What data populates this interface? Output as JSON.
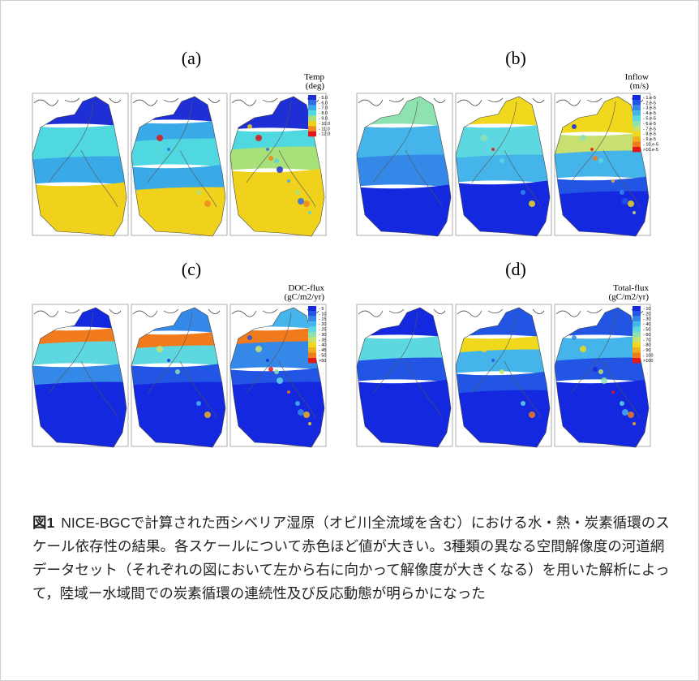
{
  "panels": [
    {
      "label": "(a)",
      "legend": {
        "title": "Temp",
        "unit": "(deg)",
        "labels": [
          "- 5.0",
          "- 6.0",
          "- 7.0",
          "- 8.0",
          "- 9.0",
          "- 10.0",
          "- 11.0",
          "- 12.0"
        ],
        "colors": [
          "#1e2fd6",
          "#2f6fe0",
          "#39a9e8",
          "#4fd8e0",
          "#a8e07a",
          "#f0d21c",
          "#f08a1c",
          "#e01818"
        ]
      }
    },
    {
      "label": "(b)",
      "legend": {
        "title": "Inflow",
        "unit": "(m/s)",
        "labels": [
          "- 1.e-5",
          "- 2.e-5",
          "- 3.e-5",
          "- 4.e-5",
          "- 5.e-5",
          "- 6.e-5",
          "- 7.e-5",
          "- 8.e-5",
          "- 9.e-5",
          "- 10.e-5",
          ">10.e-5"
        ],
        "colors": [
          "#1428e0",
          "#2255e4",
          "#3388e8",
          "#44b4ea",
          "#5ed8e0",
          "#8ee2b0",
          "#c8e070",
          "#f0d81c",
          "#f0b01c",
          "#f07a1c",
          "#e01818"
        ]
      }
    },
    {
      "label": "(c)",
      "legend": {
        "title": "DOC-flux",
        "unit": "(gC/m2/yr)",
        "labels": [
          "- 5",
          "- 10",
          "- 15",
          "- 20",
          "- 25",
          "- 30",
          "- 35",
          "- 40",
          "- 45",
          "- 50",
          ">50"
        ],
        "colors": [
          "#1428e0",
          "#2255e4",
          "#3388e8",
          "#44b4ea",
          "#5ed8e0",
          "#8ee2b0",
          "#c8e070",
          "#f0d81c",
          "#f0b01c",
          "#f07a1c",
          "#e01818"
        ]
      }
    },
    {
      "label": "(d)",
      "legend": {
        "title": "Total-flux",
        "unit": "(gC/m2/yr)",
        "labels": [
          "- 10",
          "- 20",
          "- 30",
          "- 40",
          "- 50",
          "- 60",
          "- 70",
          "- 80",
          "- 90",
          "- 100",
          ">100"
        ],
        "colors": [
          "#1428e0",
          "#2255e4",
          "#3388e8",
          "#44b4ea",
          "#5ed8e0",
          "#8ee2b0",
          "#c8e070",
          "#f0d81c",
          "#f0b01c",
          "#f07a1c",
          "#e01818"
        ]
      }
    }
  ],
  "caption": {
    "label": "図1",
    "text": "NICE-BGCで計算された西シベリア湿原（オビ川全流域を含む）における水・熱・炭素循環のスケール依存性の結果。各スケールについて赤色ほど値が大きい。3種類の異なる空間解像度の河道網データセット（それぞれの図において左から右に向かって解像度が大きくなる）を用いた解析によって，陸域ー水域間での炭素循環の連続性及び反応動態が明らかになった"
  }
}
